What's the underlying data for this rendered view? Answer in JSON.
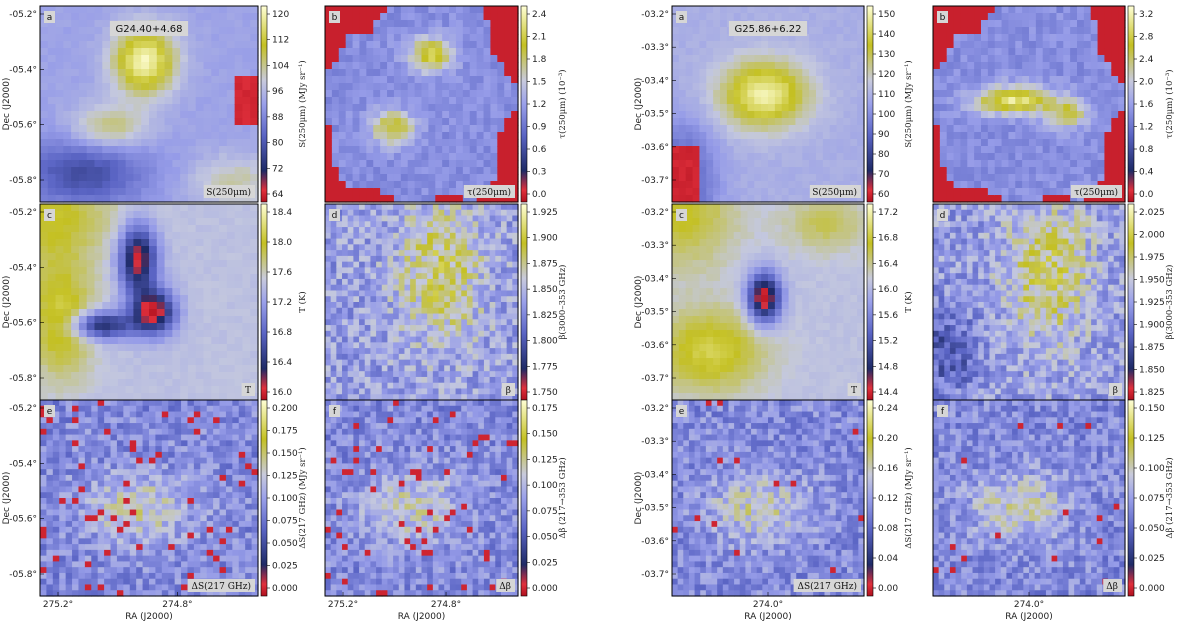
{
  "chart_data": {
    "type": "heatmap",
    "colors": {
      "low": "#cc1f2e",
      "mid_dark": "#2e3a7a",
      "mid": "#8f97e8",
      "mid_light": "#c9cce6",
      "high": "#c9c51d",
      "top": "#ffffd0"
    },
    "fields": [
      {
        "title": "G24.40+4.68",
        "xlabel": "RA (J2000)",
        "ylabel": "Dec (J2000)",
        "xticks": [
          "275.2°",
          "274.8°"
        ],
        "yticks": [
          "-05.2°",
          "-05.4°",
          "-05.6°",
          "-05.8°"
        ],
        "panels": [
          {
            "tag": "a",
            "quantity": "S(250μm)",
            "cbar_label": "S(250μm) (MJy sr⁻¹)",
            "cbar_ticks": [
              "120",
              "112",
              "104",
              "96",
              "88",
              "80",
              "72",
              "64"
            ],
            "pattern": "blob"
          },
          {
            "tag": "b",
            "quantity": "τ(250μm)",
            "cbar_label": "τ(250μm) (10⁻³)",
            "cbar_ticks": [
              "2.4",
              "2.1",
              "1.8",
              "1.5",
              "1.2",
              "0.9",
              "0.6",
              "0.3",
              "0.0"
            ],
            "pattern": "masked"
          },
          {
            "tag": "c",
            "quantity": "T",
            "cbar_label": "T (K)",
            "cbar_ticks": [
              "18.4",
              "18.0",
              "17.6",
              "17.2",
              "16.8",
              "16.4",
              "16.0"
            ],
            "pattern": "cold"
          },
          {
            "tag": "d",
            "quantity": "β",
            "cbar_label": "β(3000–353 GHz)",
            "cbar_ticks": [
              "1.925",
              "1.900",
              "1.875",
              "1.850",
              "1.825",
              "1.800",
              "1.775",
              "1.750"
            ],
            "pattern": "noise"
          },
          {
            "tag": "e",
            "quantity": "ΔS(217 GHz)",
            "cbar_label": "ΔS(217 GHz) (MJy sr⁻¹)",
            "cbar_ticks": [
              "0.200",
              "0.175",
              "0.150",
              "0.125",
              "0.100",
              "0.075",
              "0.050",
              "0.025",
              "0.000"
            ],
            "pattern": "blocks"
          },
          {
            "tag": "f",
            "quantity": "Δβ",
            "cbar_label": "Δβ (217→353 GHz)",
            "cbar_ticks": [
              "0.175",
              "0.150",
              "0.125",
              "0.100",
              "0.075",
              "0.050",
              "0.025",
              "0.000"
            ],
            "pattern": "blocks"
          }
        ]
      },
      {
        "title": "G25.86+6.22",
        "xlabel": "RA (J2000)",
        "ylabel": "Dec (J2000)",
        "xticks": [
          "274.0°"
        ],
        "yticks": [
          "-03.2°",
          "-03.3°",
          "-03.4°",
          "-03.5°",
          "-03.6°",
          "-03.7°"
        ],
        "panels": [
          {
            "tag": "a",
            "quantity": "S(250μm)",
            "cbar_label": "S(250μm) (MJy sr⁻¹)",
            "cbar_ticks": [
              "150",
              "140",
              "130",
              "120",
              "110",
              "100",
              "90",
              "80",
              "70",
              "60"
            ],
            "pattern": "blob"
          },
          {
            "tag": "b",
            "quantity": "τ(250μm)",
            "cbar_label": "τ(250μm) (10⁻³)",
            "cbar_ticks": [
              "3.2",
              "2.8",
              "2.4",
              "2.0",
              "1.6",
              "1.2",
              "0.8",
              "0.4",
              "0.0"
            ],
            "pattern": "masked"
          },
          {
            "tag": "c",
            "quantity": "T",
            "cbar_label": "T (K)",
            "cbar_ticks": [
              "17.2",
              "16.8",
              "16.4",
              "16.0",
              "15.6",
              "15.2",
              "14.8",
              "14.4"
            ],
            "pattern": "cold"
          },
          {
            "tag": "d",
            "quantity": "β",
            "cbar_label": "β(3000–353 GHz)",
            "cbar_ticks": [
              "2.025",
              "2.000",
              "1.975",
              "1.950",
              "1.925",
              "1.900",
              "1.875",
              "1.850",
              "1.825"
            ],
            "pattern": "noise"
          },
          {
            "tag": "e",
            "quantity": "ΔS(217 GHz)",
            "cbar_label": "ΔS(217 GHz) (MJy sr⁻¹)",
            "cbar_ticks": [
              "0.24",
              "0.20",
              "0.16",
              "0.12",
              "0.08",
              "0.04",
              "0.00"
            ],
            "pattern": "blocks"
          },
          {
            "tag": "f",
            "quantity": "Δβ",
            "cbar_label": "Δβ (217→353 GHz)",
            "cbar_ticks": [
              "0.150",
              "0.125",
              "0.100",
              "0.075",
              "0.050",
              "0.025",
              "0.000"
            ],
            "pattern": "blocks"
          }
        ]
      }
    ]
  }
}
